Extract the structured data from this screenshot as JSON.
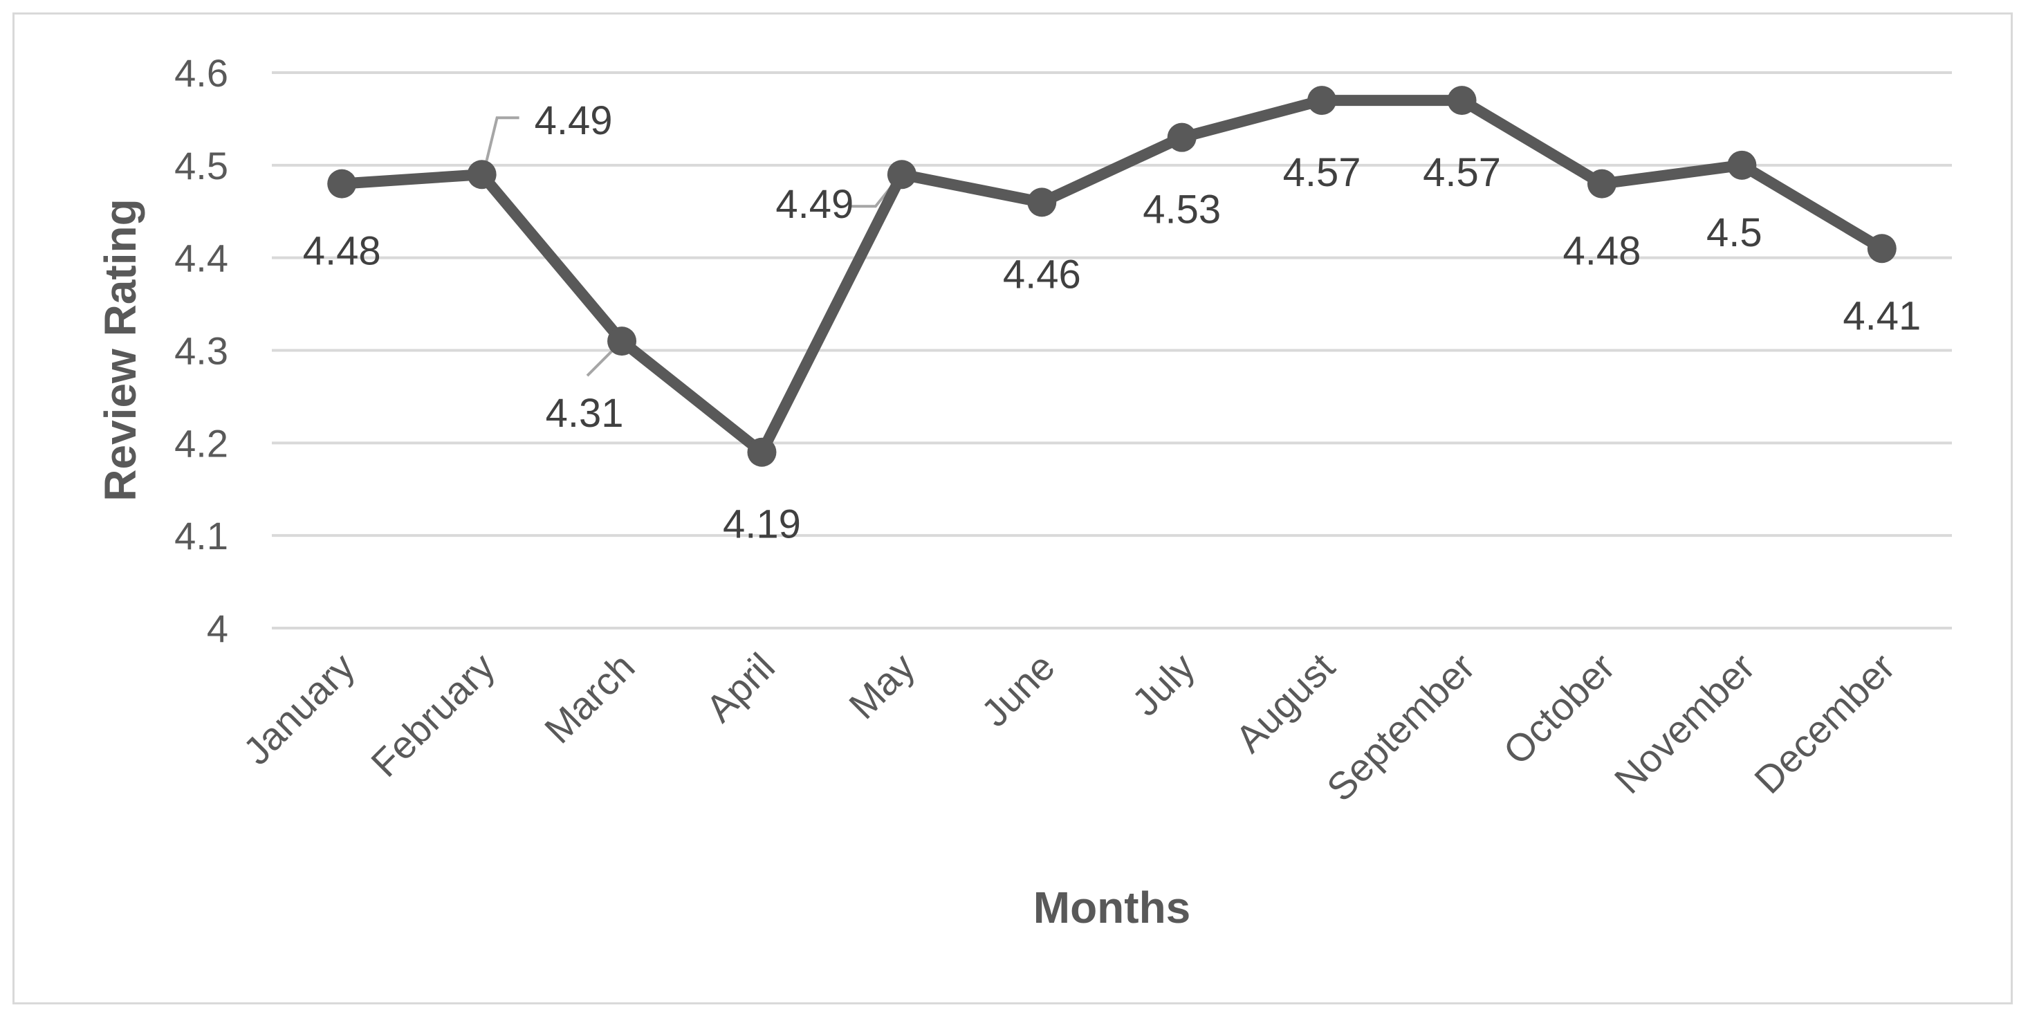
{
  "chart_data": {
    "type": "line",
    "title": "",
    "xlabel": "Months",
    "ylabel": "Review Rating",
    "categories": [
      "January",
      "February",
      "March",
      "April",
      "May",
      "June",
      "July",
      "August",
      "September",
      "October",
      "November",
      "December"
    ],
    "series": [
      {
        "values": [
          4.48,
          4.49,
          4.31,
          4.19,
          4.49,
          4.46,
          4.53,
          4.57,
          4.57,
          4.48,
          4.5,
          4.41
        ],
        "data_labels": [
          "4.48",
          "4.49",
          "4.31",
          "4.19",
          "4.49",
          "4.46",
          "4.53",
          "4.57",
          "4.57",
          "4.48",
          "4.5",
          "4.41"
        ],
        "color": "#595959"
      }
    ],
    "ylim": [
      4,
      4.6
    ],
    "yticks": [
      "4",
      "4.1",
      "4.2",
      "4.3",
      "4.4",
      "4.5",
      "4.6"
    ],
    "grid": true,
    "legend": "none",
    "gridline_color": "#d9d9d9",
    "leader_line_color": "#a6a6a6"
  }
}
